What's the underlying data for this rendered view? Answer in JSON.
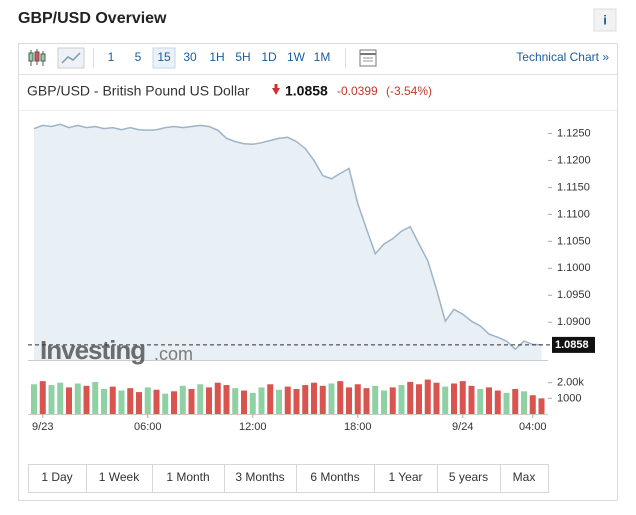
{
  "header": {
    "title": "GBP/USD Overview",
    "info": "i"
  },
  "toolbar": {
    "intervals": [
      "1",
      "5",
      "15",
      "30",
      "1H",
      "5H",
      "1D",
      "1W",
      "1M"
    ],
    "selected": 2,
    "link": "Technical Chart »"
  },
  "quote": {
    "name": "GBP/USD - British Pound US Dollar",
    "price": 1.0858,
    "change": "-0.0399",
    "change_percent": "(-3.54%)"
  },
  "watermark": {
    "brand": "Investing",
    "domain": ".com"
  },
  "chart_data": {
    "type": "area",
    "categories": [
      null,
      "9/23",
      null,
      null,
      null,
      null,
      null,
      null,
      null,
      null,
      null,
      null,
      null,
      "06:00",
      null,
      null,
      null,
      null,
      null,
      null,
      null,
      null,
      null,
      null,
      null,
      "12:00",
      null,
      null,
      null,
      null,
      null,
      null,
      null,
      null,
      null,
      null,
      null,
      "18:00",
      null,
      null,
      null,
      null,
      null,
      null,
      null,
      null,
      null,
      null,
      null,
      "9/24",
      null,
      null,
      null,
      null,
      null,
      null,
      null,
      "04:00",
      null
    ],
    "series": [
      {
        "name": "GBP/USD",
        "color": "#9db4c8",
        "values": [
          1.1259,
          1.1265,
          1.1263,
          1.1267,
          1.1261,
          1.1265,
          1.1261,
          1.1263,
          1.1259,
          1.1261,
          1.1257,
          1.1261,
          1.1257,
          1.1256,
          1.1257,
          1.1261,
          1.1263,
          1.1261,
          1.1263,
          1.1265,
          1.1263,
          1.1256,
          1.1241,
          1.1235,
          1.1231,
          1.123,
          1.1233,
          1.1237,
          1.1241,
          1.1243,
          1.1235,
          1.1222,
          1.12,
          1.1172,
          1.1166,
          1.1176,
          1.1185,
          1.112,
          1.1073,
          1.1027,
          1.1045,
          1.1055,
          1.1069,
          1.1077,
          1.1045,
          1.1014,
          1.0961,
          1.0902,
          1.0924,
          1.0915,
          1.0902,
          1.0893,
          1.0878,
          1.0872,
          1.0865,
          1.085,
          1.0865,
          1.0859,
          1.0858
        ]
      }
    ],
    "area_color": "#e8eff5",
    "ylim": [
      1.083,
      1.1275
    ],
    "yticks": [
      {
        "value": 1.09,
        "label": "1.0900"
      },
      {
        "value": 1.095,
        "label": "1.0950"
      },
      {
        "value": 1.1,
        "label": "1.1000"
      },
      {
        "value": 1.105,
        "label": "1.1050"
      },
      {
        "value": 1.11,
        "label": "1.1100"
      },
      {
        "value": 1.115,
        "label": "1.1150"
      },
      {
        "value": 1.12,
        "label": "1.1200"
      },
      {
        "value": 1.125,
        "label": "1.1250"
      }
    ],
    "volume": {
      "values": [
        1900,
        2100,
        1850,
        2000,
        1700,
        1950,
        1800,
        2050,
        1600,
        1750,
        1500,
        1650,
        1400,
        1700,
        1550,
        1300,
        1450,
        1800,
        1600,
        1900,
        1700,
        2000,
        1850,
        1650,
        1500,
        1350,
        1700,
        1900,
        1550,
        1750,
        1600,
        1850,
        2000,
        1800,
        1950,
        2100,
        1700,
        1900,
        1650,
        1800,
        1500,
        1700,
        1850,
        2050,
        1900,
        2200,
        2000,
        1750,
        1950,
        2100,
        1800,
        1600,
        1700,
        1500,
        1350,
        1600,
        1450,
        1200,
        1000
      ],
      "colors": [
        "#8fd1a4",
        "#d9534f",
        "#8fd1a4",
        "#8fd1a4",
        "#d9534f",
        "#8fd1a4",
        "#d9534f",
        "#8fd1a4",
        "#8fd1a4",
        "#d9534f",
        "#8fd1a4",
        "#d9534f",
        "#d9534f",
        "#8fd1a4",
        "#d9534f",
        "#8fd1a4",
        "#d9534f",
        "#8fd1a4",
        "#d9534f",
        "#8fd1a4",
        "#d9534f",
        "#d9534f",
        "#d9534f",
        "#8fd1a4",
        "#d9534f",
        "#8fd1a4",
        "#8fd1a4",
        "#d9534f",
        "#8fd1a4",
        "#d9534f",
        "#d9534f",
        "#d9534f",
        "#d9534f",
        "#d9534f",
        "#8fd1a4",
        "#d9534f",
        "#d9534f",
        "#d9534f",
        "#d9534f",
        "#8fd1a4",
        "#8fd1a4",
        "#d9534f",
        "#8fd1a4",
        "#d9534f",
        "#d9534f",
        "#d9534f",
        "#d9534f",
        "#8fd1a4",
        "#d9534f",
        "#d9534f",
        "#d9534f",
        "#8fd1a4",
        "#d9534f",
        "#d9534f",
        "#8fd1a4",
        "#d9534f",
        "#8fd1a4",
        "#d9534f",
        "#d9534f"
      ],
      "ylim": [
        0,
        2300
      ],
      "yticks": [
        {
          "value": 2000,
          "label": "2.00k"
        },
        1000
      ]
    }
  },
  "ranges": [
    "1 Day",
    "1 Week",
    "1 Month",
    "3 Months",
    "6 Months",
    "1 Year",
    "5 years",
    "Max"
  ]
}
